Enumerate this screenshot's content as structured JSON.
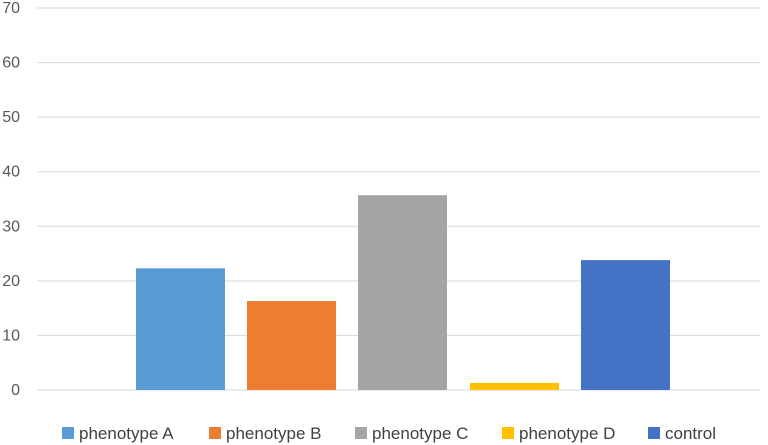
{
  "chart_data": {
    "type": "bar",
    "title": "",
    "xlabel": "",
    "ylabel": "",
    "ylim": [
      0,
      70
    ],
    "yticks": [
      "0",
      "10",
      "20",
      "30",
      "40",
      "50",
      "60",
      "70"
    ],
    "grid": true,
    "legend_position": "bottom",
    "series": [
      {
        "name": "phenotype A",
        "value": 22.3,
        "color": "#5B9BD5"
      },
      {
        "name": "phenotype B",
        "value": 16.3,
        "color": "#ED7D31"
      },
      {
        "name": "phenotype C",
        "value": 35.7,
        "color": "#A5A5A5"
      },
      {
        "name": "phenotype D",
        "value": 1.3,
        "color": "#FFC000"
      },
      {
        "name": "control",
        "value": 23.8,
        "color": "#4472C4"
      }
    ]
  }
}
